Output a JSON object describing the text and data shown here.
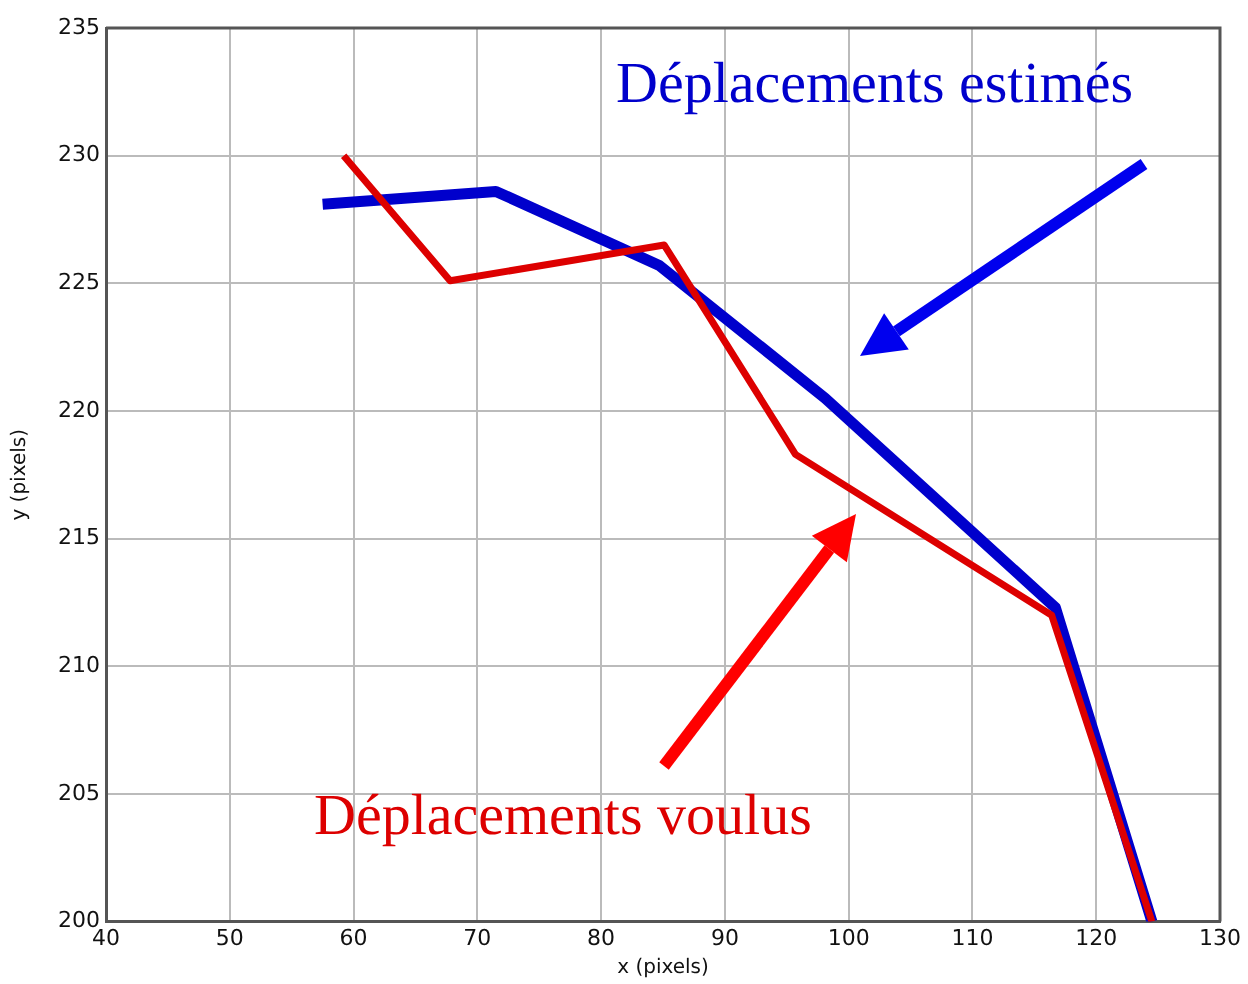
{
  "chart_data": {
    "type": "line",
    "xlabel": "x (pixels)",
    "ylabel": "y (pixels)",
    "xlim": [
      40,
      130
    ],
    "xticks": [
      40,
      50,
      60,
      70,
      80,
      90,
      100,
      110,
      120,
      130
    ],
    "ylim": [
      200,
      235
    ],
    "yticks": [
      200,
      205,
      210,
      215,
      220,
      225,
      230,
      235
    ],
    "grid": true,
    "legend": false,
    "marker": "none",
    "line_style": "solid",
    "series": [
      {
        "name": "Déplacements estimés",
        "color": "#0000cc",
        "x": [
          57.5,
          71.5,
          84.7,
          98.1,
          116.7,
          124.5
        ],
        "values": [
          228.1,
          228.6,
          225.7,
          220.5,
          212.3,
          200
        ]
      },
      {
        "name": "Déplacements voulus",
        "color": "#dd0000",
        "x": [
          59.2,
          67.8,
          85.1,
          95.7,
          116.4,
          124.5
        ],
        "values": [
          230.0,
          225.1,
          226.5,
          218.3,
          212.0,
          200
        ]
      }
    ]
  }
}
